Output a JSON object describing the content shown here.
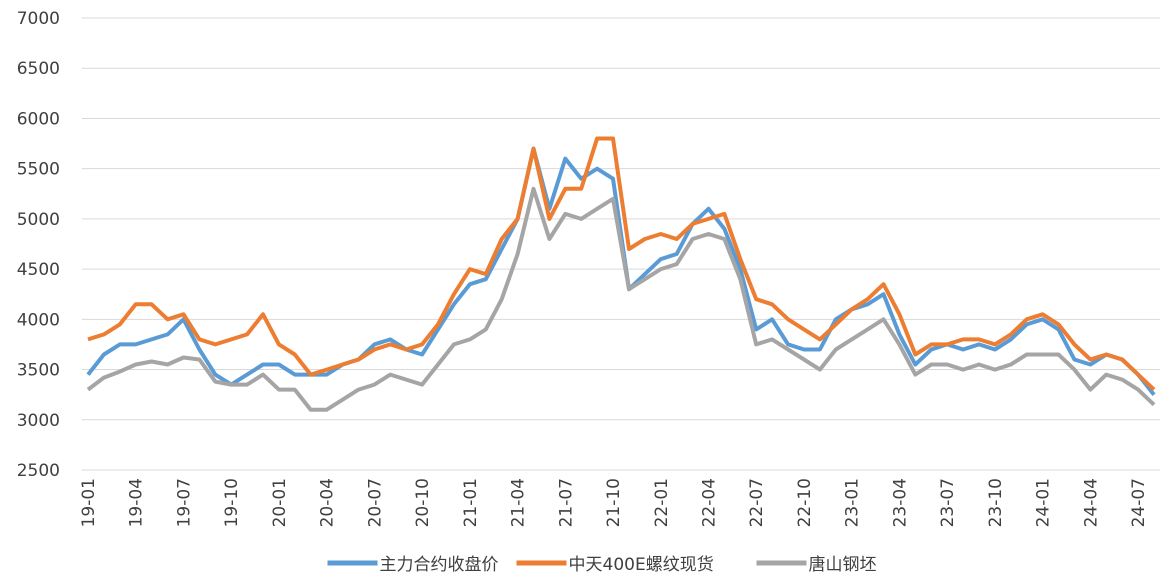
{
  "chart_data": {
    "type": "line",
    "categories": [
      "19-01",
      null,
      null,
      "19-04",
      null,
      null,
      "19-07",
      null,
      null,
      "19-10",
      null,
      null,
      "20-01",
      null,
      null,
      "20-04",
      null,
      null,
      "20-07",
      null,
      null,
      "20-10",
      null,
      null,
      "21-01",
      null,
      null,
      "21-04",
      null,
      null,
      "21-07",
      null,
      null,
      "21-10",
      null,
      null,
      "22-01",
      null,
      null,
      "22-04",
      null,
      null,
      "22-07",
      null,
      null,
      "22-10",
      null,
      null,
      "23-01",
      null,
      null,
      "23-04",
      null,
      null,
      "23-07",
      null,
      null,
      "23-10",
      null,
      null,
      "24-01",
      null,
      null,
      "24-04",
      null,
      null,
      "24-07",
      null
    ],
    "series": [
      {
        "name": "主力合约收盘价",
        "color": "#5b9bd5",
        "values": [
          3450,
          3650,
          3750,
          3750,
          3800,
          3850,
          4000,
          3700,
          3450,
          3350,
          3450,
          3550,
          3550,
          3450,
          3450,
          3450,
          3550,
          3600,
          3750,
          3800,
          3700,
          3650,
          3900,
          4150,
          4350,
          4400,
          4700,
          5000,
          5700,
          5100,
          5600,
          5400,
          5500,
          5400,
          4300,
          4450,
          4600,
          4650,
          4950,
          5100,
          4900,
          4500,
          3900,
          4000,
          3750,
          3700,
          3700,
          4000,
          4100,
          4150,
          4250,
          3850,
          3550,
          3700,
          3750,
          3700,
          3750,
          3700,
          3800,
          3950,
          4000,
          3900,
          3600,
          3550,
          3650,
          3600,
          3450,
          3250
        ]
      },
      {
        "name": "中天400E螺纹现货",
        "color": "#ed7d31",
        "values": [
          3800,
          3850,
          3950,
          4150,
          4150,
          4000,
          4050,
          3800,
          3750,
          3800,
          3850,
          4050,
          3750,
          3650,
          3450,
          3500,
          3550,
          3600,
          3700,
          3750,
          3700,
          3750,
          3950,
          4250,
          4500,
          4450,
          4800,
          5000,
          5700,
          5000,
          5300,
          5300,
          5800,
          5800,
          4700,
          4800,
          4850,
          4800,
          4950,
          5000,
          5050,
          4600,
          4200,
          4150,
          4000,
          3900,
          3800,
          3950,
          4100,
          4200,
          4350,
          4050,
          3650,
          3750,
          3750,
          3800,
          3800,
          3750,
          3850,
          4000,
          4050,
          3950,
          3750,
          3600,
          3650,
          3600,
          3450,
          3300
        ]
      },
      {
        "name": "唐山钢坯",
        "color": "#a5a5a5",
        "values": [
          3300,
          3420,
          3480,
          3550,
          3580,
          3550,
          3620,
          3600,
          3380,
          3350,
          3350,
          3450,
          3300,
          3300,
          3100,
          3100,
          3200,
          3300,
          3350,
          3450,
          3400,
          3350,
          3550,
          3750,
          3800,
          3900,
          4200,
          4650,
          5300,
          4800,
          5050,
          5000,
          5100,
          5200,
          4300,
          4400,
          4500,
          4550,
          4800,
          4850,
          4800,
          4400,
          3750,
          3800,
          3700,
          3600,
          3500,
          3700,
          3800,
          3900,
          4000,
          3750,
          3450,
          3550,
          3550,
          3500,
          3550,
          3500,
          3550,
          3650,
          3650,
          3650,
          3500,
          3300,
          3450,
          3400,
          3300,
          3150
        ]
      }
    ],
    "ylim": [
      2500,
      7000
    ],
    "yticks": [
      2500,
      3000,
      3500,
      4000,
      4500,
      5000,
      5500,
      6000,
      6500,
      7000
    ],
    "grid": true,
    "legend": "bottom"
  }
}
